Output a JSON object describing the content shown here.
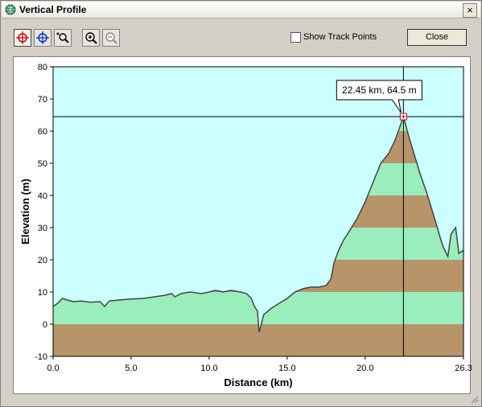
{
  "window": {
    "title": "Vertical Profile",
    "close_glyph": "×"
  },
  "toolbar": {
    "tools": [
      {
        "name": "crosshair-red-icon",
        "color": "#cc0000"
      },
      {
        "name": "crosshair-blue-icon",
        "color": "#0033cc"
      },
      {
        "name": "zoom-region-icon",
        "color": "#000000"
      },
      {
        "name": "zoom-in-icon",
        "color": "#000000"
      },
      {
        "name": "zoom-out-icon",
        "color": "#888888"
      }
    ],
    "show_track_points_label": "Show Track Points",
    "show_track_points_checked": false,
    "close_label": "Close"
  },
  "colors": {
    "plot_background": "#ccffff",
    "band_brown": "#b8946a",
    "band_green": "#99eebb",
    "profile_line": "#444444",
    "crosshair": "#000000",
    "marker": "#cc0000"
  },
  "chart_data": {
    "type": "area",
    "xlabel": "Distance  (km)",
    "ylabel": "Elevation (m)",
    "xlim": [
      0,
      26.3
    ],
    "ylim": [
      -10,
      80
    ],
    "x_ticks": [
      "0.0",
      "5.0",
      "10.0",
      "15.0",
      "20.0",
      "26.3"
    ],
    "x_tick_values": [
      0,
      5,
      10,
      15,
      20,
      26.3
    ],
    "y_ticks": [
      "-10",
      "0",
      "10",
      "20",
      "30",
      "40",
      "50",
      "60",
      "70",
      "80"
    ],
    "y_tick_values": [
      -10,
      0,
      10,
      20,
      30,
      40,
      50,
      60,
      70,
      80
    ],
    "band_interval": 10,
    "profile": {
      "x": [
        0,
        0.3,
        0.6,
        0.9,
        1.3,
        1.8,
        2.4,
        3.0,
        3.3,
        3.6,
        4.2,
        5.0,
        5.8,
        6.5,
        7.2,
        7.6,
        7.8,
        8.2,
        8.8,
        9.5,
        10.0,
        10.4,
        10.9,
        11.4,
        12.0,
        12.4,
        12.7,
        12.9,
        13.1,
        13.2,
        13.5,
        14.0,
        14.5,
        15.0,
        15.5,
        16.0,
        16.5,
        17.0,
        17.5,
        17.8,
        18.0,
        18.3,
        18.6,
        19.0,
        19.5,
        20.0,
        20.5,
        21.0,
        21.5,
        21.9,
        22.2,
        22.45,
        22.7,
        23.0,
        23.5,
        24.0,
        24.5,
        24.8,
        25.0,
        25.3,
        25.5,
        25.8,
        26.0,
        26.3
      ],
      "y": [
        5.5,
        6.5,
        8,
        7.5,
        7,
        7.2,
        6.8,
        7,
        5.5,
        7.2,
        7.5,
        7.8,
        8,
        8.5,
        9,
        9.5,
        8.5,
        9.5,
        10,
        9.5,
        10,
        10.5,
        10,
        10.5,
        10,
        9.5,
        8,
        5.5,
        4,
        -2.5,
        3,
        5,
        6.5,
        8,
        10,
        11,
        11.5,
        11.5,
        12,
        14,
        19,
        23,
        26,
        29,
        33,
        38,
        44,
        50,
        53,
        57,
        61,
        64.5,
        60,
        55,
        47,
        40,
        32,
        27,
        24,
        21,
        28,
        30,
        22,
        23
      ]
    },
    "cursor": {
      "x": 22.45,
      "y": 64.5,
      "label": "22.45 km, 64.5 m"
    }
  }
}
